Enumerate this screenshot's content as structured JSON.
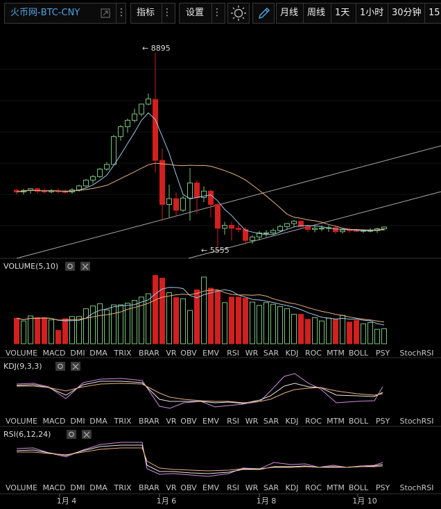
{
  "toolbar": {
    "symbol": "火币网-BTC-CNY",
    "indicators_label": "指标",
    "settings_label": "设置",
    "intervals": [
      "月线",
      "周线",
      "1天",
      "1小时",
      "30分钟",
      "15"
    ]
  },
  "chart": {
    "high_label": "8895",
    "low_label": "5555",
    "panels": {
      "volume": "VOLUME(5,10)",
      "kdj": "KDJ(9,3,3)",
      "rsi": "RSI(6,12,24)"
    },
    "indicator_tabs": [
      "VOLUME",
      "MACD",
      "DMI",
      "DMA",
      "TRIX",
      "BRAR",
      "VR",
      "OBV",
      "EMV",
      "RSI",
      "WR",
      "SAR",
      "KDJ",
      "ROC",
      "MTM",
      "BOLL",
      "PSY",
      "StochRSI"
    ],
    "x_labels": [
      "1月 4",
      "1月 6",
      "1月 8",
      "1月 10"
    ],
    "active_tabs": [
      "VOLUME",
      "KDJ",
      "RSI"
    ],
    "dimmed_tabs": [
      "RSI",
      "KDJ"
    ]
  },
  "chart_data": {
    "type": "candlestick",
    "price_max": 8895,
    "price_min": 5555,
    "candles": [
      {
        "o": 6525,
        "h": 6547,
        "l": 6456,
        "c": 6497
      },
      {
        "o": 6497,
        "h": 6547,
        "l": 6455,
        "c": 6521
      },
      {
        "o": 6521,
        "h": 6560,
        "l": 6470,
        "c": 6551
      },
      {
        "o": 6551,
        "h": 6572,
        "l": 6465,
        "c": 6508
      },
      {
        "o": 6508,
        "h": 6560,
        "l": 6470,
        "c": 6498
      },
      {
        "o": 6498,
        "h": 6545,
        "l": 6475,
        "c": 6515
      },
      {
        "o": 6515,
        "h": 6560,
        "l": 6470,
        "c": 6499
      },
      {
        "o": 6499,
        "h": 6540,
        "l": 6470,
        "c": 6497
      },
      {
        "o": 6497,
        "h": 6560,
        "l": 6465,
        "c": 6530
      },
      {
        "o": 6530,
        "h": 6620,
        "l": 6500,
        "c": 6600
      },
      {
        "o": 6600,
        "h": 6720,
        "l": 6580,
        "c": 6700
      },
      {
        "o": 6700,
        "h": 6790,
        "l": 6640,
        "c": 6760
      },
      {
        "o": 6760,
        "h": 6910,
        "l": 6740,
        "c": 6890
      },
      {
        "o": 6890,
        "h": 7010,
        "l": 6860,
        "c": 6970
      },
      {
        "o": 6970,
        "h": 7480,
        "l": 6950,
        "c": 7450
      },
      {
        "o": 7450,
        "h": 7650,
        "l": 7380,
        "c": 7620
      },
      {
        "o": 7620,
        "h": 7760,
        "l": 7520,
        "c": 7730
      },
      {
        "o": 7730,
        "h": 7930,
        "l": 7690,
        "c": 7840
      },
      {
        "o": 7840,
        "h": 8020,
        "l": 7800,
        "c": 8010
      },
      {
        "o": 8010,
        "h": 8190,
        "l": 7990,
        "c": 8100
      },
      {
        "o": 8090,
        "h": 8895,
        "l": 6830,
        "c": 7040
      },
      {
        "o": 7040,
        "h": 7240,
        "l": 6000,
        "c": 6280
      },
      {
        "o": 6280,
        "h": 6620,
        "l": 6060,
        "c": 6380
      },
      {
        "o": 6380,
        "h": 6490,
        "l": 6080,
        "c": 6180
      },
      {
        "o": 6180,
        "h": 6430,
        "l": 6150,
        "c": 6390
      },
      {
        "o": 6390,
        "h": 6910,
        "l": 6000,
        "c": 6650
      },
      {
        "o": 6650,
        "h": 6700,
        "l": 6120,
        "c": 6400
      },
      {
        "o": 6400,
        "h": 6590,
        "l": 6320,
        "c": 6510
      },
      {
        "o": 6510,
        "h": 6540,
        "l": 6060,
        "c": 6280
      },
      {
        "o": 6280,
        "h": 6310,
        "l": 5555,
        "c": 5870
      },
      {
        "o": 5870,
        "h": 5980,
        "l": 5760,
        "c": 5920
      },
      {
        "o": 5920,
        "h": 5980,
        "l": 5660,
        "c": 5870
      },
      {
        "o": 5870,
        "h": 5950,
        "l": 5800,
        "c": 5850
      },
      {
        "o": 5850,
        "h": 5890,
        "l": 5590,
        "c": 5660
      },
      {
        "o": 5660,
        "h": 5750,
        "l": 5600,
        "c": 5720
      },
      {
        "o": 5720,
        "h": 5820,
        "l": 5660,
        "c": 5790
      },
      {
        "o": 5790,
        "h": 5840,
        "l": 5720,
        "c": 5790
      },
      {
        "o": 5790,
        "h": 5870,
        "l": 5760,
        "c": 5830
      },
      {
        "o": 5830,
        "h": 5930,
        "l": 5800,
        "c": 5900
      },
      {
        "o": 5900,
        "h": 5960,
        "l": 5860,
        "c": 5950
      },
      {
        "o": 5950,
        "h": 6010,
        "l": 5890,
        "c": 5990
      },
      {
        "o": 5990,
        "h": 6010,
        "l": 5900,
        "c": 5900
      },
      {
        "o": 5900,
        "h": 5930,
        "l": 5800,
        "c": 5850
      },
      {
        "o": 5850,
        "h": 5900,
        "l": 5800,
        "c": 5870
      },
      {
        "o": 5870,
        "h": 5920,
        "l": 5820,
        "c": 5870
      },
      {
        "o": 5870,
        "h": 5920,
        "l": 5810,
        "c": 5880
      },
      {
        "o": 5880,
        "h": 5900,
        "l": 5770,
        "c": 5810
      },
      {
        "o": 5810,
        "h": 5860,
        "l": 5780,
        "c": 5840
      },
      {
        "o": 5840,
        "h": 5880,
        "l": 5790,
        "c": 5830
      },
      {
        "o": 5830,
        "h": 5860,
        "l": 5800,
        "c": 5820
      },
      {
        "o": 5820,
        "h": 5850,
        "l": 5790,
        "c": 5830
      },
      {
        "o": 5830,
        "h": 5870,
        "l": 5800,
        "c": 5830
      },
      {
        "o": 5830,
        "h": 5880,
        "l": 5790,
        "c": 5860
      },
      {
        "o": 5860,
        "h": 5900,
        "l": 5830,
        "c": 5890
      }
    ],
    "volume": [
      46,
      41,
      50,
      47,
      47,
      43,
      24,
      45,
      49,
      49,
      63,
      68,
      72,
      61,
      70,
      70,
      73,
      78,
      84,
      90,
      123,
      118,
      92,
      83,
      81,
      60,
      97,
      120,
      100,
      96,
      74,
      84,
      84,
      82,
      75,
      69,
      74,
      71,
      67,
      63,
      53,
      53,
      44,
      47,
      41,
      46,
      44,
      51,
      39,
      42,
      36,
      38,
      26,
      27
    ],
    "colors": {
      "up": "#7cc47c",
      "down": "#d21f1f",
      "ma_fast": "#9cc8e8",
      "ma_slow": "#e8b27c"
    }
  }
}
